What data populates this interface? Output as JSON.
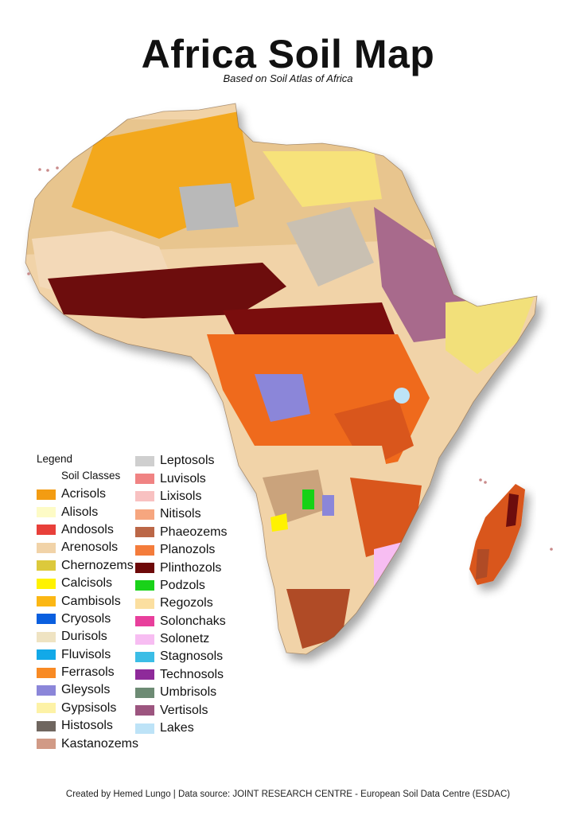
{
  "title": "Africa Soil Map",
  "subtitle": "Based on Soil Atlas of Africa",
  "legend": {
    "heading": "Legend",
    "subheading": "Soil Classes",
    "column1": [
      {
        "label": "Acrisols",
        "color": "#f39c12"
      },
      {
        "label": "Alisols",
        "color": "#fdfbc6"
      },
      {
        "label": "Andosols",
        "color": "#e8403a"
      },
      {
        "label": "Arenosols",
        "color": "#f1d3a8"
      },
      {
        "label": "Chernozems",
        "color": "#dcc93c"
      },
      {
        "label": "Calcisols",
        "color": "#fff200"
      },
      {
        "label": "Cambisols",
        "color": "#fbb714"
      },
      {
        "label": "Cryosols",
        "color": "#0a5fdf"
      },
      {
        "label": "Durisols",
        "color": "#efe3c2"
      },
      {
        "label": "Fluvisols",
        "color": "#12a9e8"
      },
      {
        "label": "Ferrasols",
        "color": "#f88a24"
      },
      {
        "label": "Gleysols",
        "color": "#8b86d9"
      },
      {
        "label": "Gypsisols",
        "color": "#fdf2a6"
      },
      {
        "label": "Histosols",
        "color": "#6f665f"
      },
      {
        "label": "Kastanozems",
        "color": "#d19a86"
      }
    ],
    "column2": [
      {
        "label": "Leptosols",
        "color": "#cfcfcf"
      },
      {
        "label": "Luvisols",
        "color": "#f08383"
      },
      {
        "label": "Lixisols",
        "color": "#f8c1c1"
      },
      {
        "label": "Nitisols",
        "color": "#f6a67f"
      },
      {
        "label": "Phaeozems",
        "color": "#bb6747"
      },
      {
        "label": "Planozols",
        "color": "#f47c3b"
      },
      {
        "label": "Plinthozols",
        "color": "#6d0909"
      },
      {
        "label": "Podzols",
        "color": "#19d219"
      },
      {
        "label": "Regozols",
        "color": "#fbdfa0"
      },
      {
        "label": "Solonchaks",
        "color": "#e83f9c"
      },
      {
        "label": "Solonetz",
        "color": "#f7bdf2"
      },
      {
        "label": "Stagnosols",
        "color": "#3bbde6"
      },
      {
        "label": " Technosols",
        "color": "#8e2a9a"
      },
      {
        "label": "Umbrisols",
        "color": "#6d8b74"
      },
      {
        "label": "Vertisols",
        "color": "#9c557f"
      },
      {
        "label": "Lakes",
        "color": "#bde3f7"
      }
    ]
  },
  "footer": "Created by Hemed Lungo |  Data source: JOINT RESEARCH CENTRE - European Soil Data Centre (ESDAC)"
}
